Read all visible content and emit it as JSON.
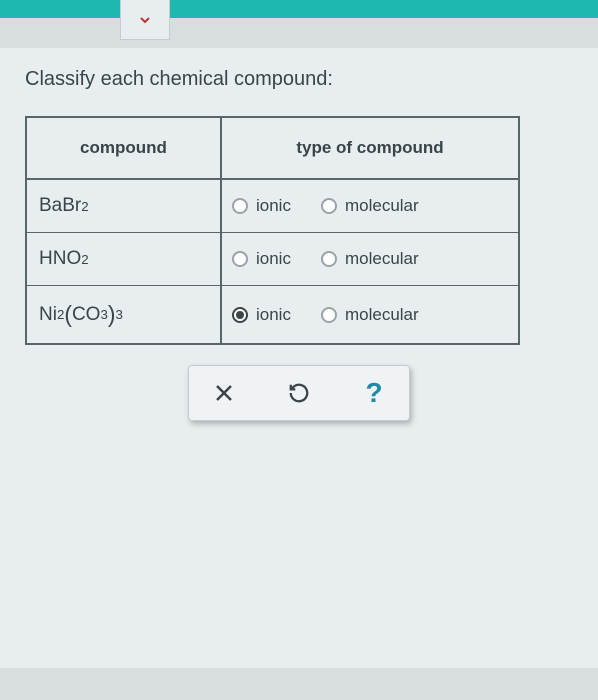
{
  "question": "Classify each chemical compound:",
  "table": {
    "headers": {
      "compound": "compound",
      "type": "type of compound"
    },
    "options": {
      "ionic": "ionic",
      "molecular": "molecular"
    },
    "rows": [
      {
        "formula_html": "BaBr<sub>2</sub>",
        "selected": null
      },
      {
        "formula_html": "HNO<sub>2</sub>",
        "selected": null
      },
      {
        "formula_html": "Ni<sub>2</sub><span class=\"formula-paren\">(</span>CO<sub>3</sub><span class=\"formula-paren\">)</span><sub>3</sub>",
        "selected": "ionic"
      }
    ]
  },
  "actions": {
    "close": "×",
    "reset": "↺",
    "help": "?"
  },
  "colors": {
    "teal_bar": "#1fb8b0",
    "background": "#d8dde0",
    "panel": "#e8edef",
    "text": "#3a4548",
    "border": "#5a6568",
    "help_color": "#2089a8"
  }
}
